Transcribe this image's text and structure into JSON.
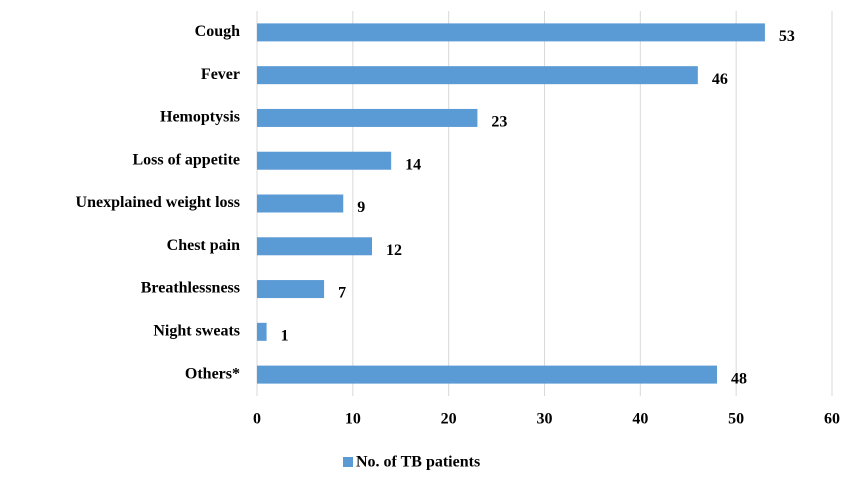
{
  "chart_data": {
    "type": "bar",
    "orientation": "horizontal",
    "categories": [
      "Cough",
      "Fever",
      "Hemoptysis",
      "Loss of appetite",
      "Unexplained weight loss",
      "Chest pain",
      "Breathlessness",
      "Night sweats",
      "Others*"
    ],
    "series": [
      {
        "name": "No. of TB patients",
        "color": "#5b9bd5",
        "values": [
          53,
          46,
          23,
          14,
          9,
          12,
          7,
          1,
          48
        ]
      }
    ],
    "xlim": [
      0,
      60
    ],
    "xticks": [
      0,
      10,
      20,
      30,
      40,
      50,
      60
    ],
    "grid": true,
    "legend": "bottom"
  }
}
